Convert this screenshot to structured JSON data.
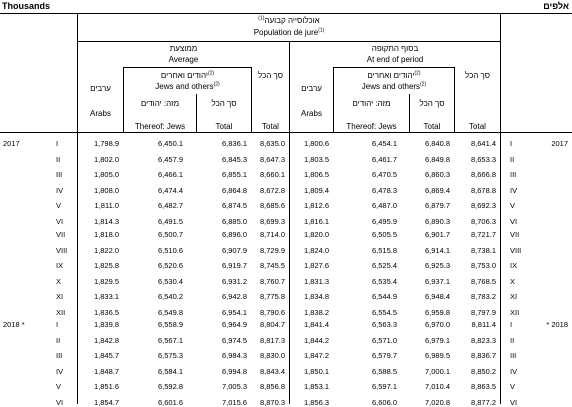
{
  "units": {
    "en": "Thousands",
    "he": "אלפים"
  },
  "header": {
    "group_he": "אוכלוסייה קבועה",
    "group_en": "Population de jure",
    "note": "(1)",
    "average_he": "ממוצעת",
    "average_en": "Average",
    "end_he": "בסוף התקופה",
    "end_en": "At end of period",
    "jews_he": "יהודים ואחרים",
    "jews_en": "Jews and others",
    "note2": "(2)",
    "thereof_he": "מזה: יהודים",
    "total_he": "סך הכל",
    "total_all_he": "סך הכל",
    "arabs_he": "ערבים",
    "col_arabs": "Arabs",
    "col_jews": "Thereof: Jews",
    "col_total": "Total",
    "col_grand": "Total"
  },
  "rows": [
    {
      "yl": "2017",
      "m": "I",
      "a": [
        "1,798.9",
        "6,450.1",
        "6,836.1",
        "8,635.0"
      ],
      "e": [
        "1,800.6",
        "6,454.1",
        "6,840.8",
        "8,641.4"
      ],
      "mr": "I",
      "yr": "2017"
    },
    {
      "yl": "",
      "m": "II",
      "a": [
        "1,802.0",
        "6,457.9",
        "6,845.3",
        "8,647.3"
      ],
      "e": [
        "1,803.5",
        "6,461.7",
        "6,849.8",
        "8,653.3"
      ],
      "mr": "II",
      "yr": ""
    },
    {
      "yl": "",
      "m": "III",
      "a": [
        "1,805.0",
        "6,466.1",
        "6,855.1",
        "8,660.1"
      ],
      "e": [
        "1,806.5",
        "6,470.5",
        "6,860.3",
        "8,666.8"
      ],
      "mr": "III",
      "yr": ""
    },
    {
      "yl": "",
      "m": "IV",
      "a": [
        "1,808.0",
        "6,474.4",
        "6,864.8",
        "8,672.8"
      ],
      "e": [
        "1,809.4",
        "6,478.3",
        "6,869.4",
        "8,678.8"
      ],
      "mr": "IV",
      "yr": ""
    },
    {
      "yl": "",
      "m": "V",
      "a": [
        "1,811.0",
        "6,482.7",
        "6,874.5",
        "8,685.6"
      ],
      "e": [
        "1,812.6",
        "6,487.0",
        "6,879.7",
        "8,692.3"
      ],
      "mr": "V",
      "yr": ""
    },
    {
      "yl": "",
      "m": "VI",
      "a": [
        "1,814.3",
        "6,491.5",
        "6,885.0",
        "8,699.3"
      ],
      "e": [
        "1,816.1",
        "6,495.9",
        "6,890.3",
        "8,706.3"
      ],
      "mr": "VI",
      "yr": ""
    },
    {
      "yl": "",
      "m": "VII",
      "a": [
        "1,818.0",
        "6,500.7",
        "6,896.0",
        "8,714.0"
      ],
      "e": [
        "1,820.0",
        "6,505.5",
        "6,901.7",
        "8,721.7"
      ],
      "mr": "VII",
      "yr": ""
    },
    {
      "yl": "",
      "m": "VIII",
      "a": [
        "1,822.0",
        "6,510.6",
        "6,907.9",
        "8,729.9"
      ],
      "e": [
        "1,824.0",
        "6,515.8",
        "6,914.1",
        "8,738.1"
      ],
      "mr": "VIII",
      "yr": ""
    },
    {
      "yl": "",
      "m": "IX",
      "a": [
        "1,825.8",
        "6,520.6",
        "6,919.7",
        "8,745.5"
      ],
      "e": [
        "1,827.6",
        "6,525.4",
        "6,925.3",
        "8,753.0"
      ],
      "mr": "IX",
      "yr": ""
    },
    {
      "yl": "",
      "m": "X",
      "a": [
        "1,829.5",
        "6,530.4",
        "6,931.2",
        "8,760.7"
      ],
      "e": [
        "1,831.3",
        "6,535.4",
        "6,937.1",
        "8,768.5"
      ],
      "mr": "X",
      "yr": ""
    },
    {
      "yl": "",
      "m": "XI",
      "a": [
        "1,833.1",
        "6,540.2",
        "6,942.8",
        "8,775.8"
      ],
      "e": [
        "1,834.8",
        "6,544.9",
        "6,948.4",
        "8,783.2"
      ],
      "mr": "XI",
      "yr": ""
    },
    {
      "yl": "",
      "m": "XII",
      "a": [
        "1,836.5",
        "6,549.8",
        "6,954.1",
        "8,790.6"
      ],
      "e": [
        "1,838.2",
        "6,554.5",
        "6,959.8",
        "8,797.9"
      ],
      "mr": "XII",
      "yr": ""
    },
    {
      "yl": "2018  *",
      "m": "I",
      "a": [
        "1,839.8",
        "6,558.9",
        "6,964.9",
        "8,804.7"
      ],
      "e": [
        "1,841.4",
        "6,563.3",
        "6,970.0",
        "8,811.4"
      ],
      "mr": "I",
      "yr": "* 2018"
    },
    {
      "yl": "",
      "m": "II",
      "a": [
        "1,842.8",
        "6,567.1",
        "6,974.5",
        "8,817.3"
      ],
      "e": [
        "1,844.2",
        "6,571.0",
        "6,979.1",
        "8,823.3"
      ],
      "mr": "II",
      "yr": ""
    },
    {
      "yl": "",
      "m": "III",
      "a": [
        "1,845.7",
        "6,575.3",
        "6,984.3",
        "8,830.0"
      ],
      "e": [
        "1,847.2",
        "6,579.7",
        "6,989.5",
        "8,836.7"
      ],
      "mr": "III",
      "yr": ""
    },
    {
      "yl": "",
      "m": "IV",
      "a": [
        "1,848.7",
        "6,584.1",
        "6,994.8",
        "8,843.4"
      ],
      "e": [
        "1,850.1",
        "6,588.5",
        "7,000.1",
        "8,850.2"
      ],
      "mr": "IV",
      "yr": ""
    },
    {
      "yl": "",
      "m": "V",
      "a": [
        "1,851.6",
        "6,592.8",
        "7,005.3",
        "8,856.8"
      ],
      "e": [
        "1,853.1",
        "6,597.1",
        "7,010.4",
        "8,863.5"
      ],
      "mr": "V",
      "yr": ""
    },
    {
      "yl": "",
      "m": "VI",
      "a": [
        "1,854.7",
        "6,601.6",
        "7,015.6",
        "8,870.3"
      ],
      "e": [
        "1,856.3",
        "6,606.0",
        "7,020.8",
        "8,877.2"
      ],
      "mr": "VI",
      "yr": ""
    }
  ]
}
